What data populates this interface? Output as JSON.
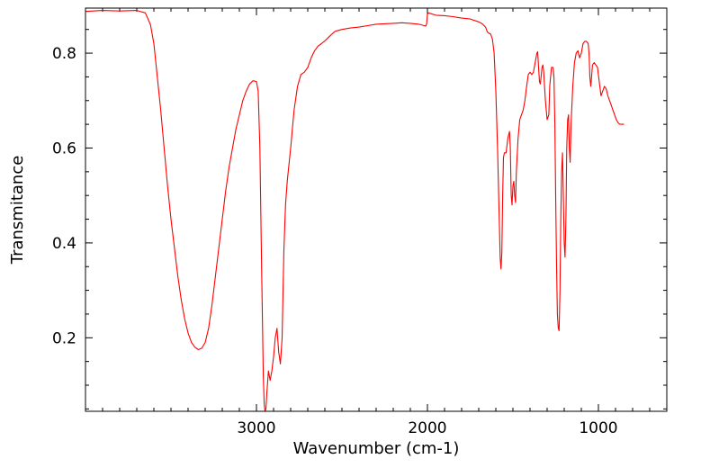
{
  "chart_data": {
    "type": "line",
    "title": "",
    "xlabel": "Wavenumber (cm-1)",
    "ylabel": "Transmitance",
    "x_axis_reversed": true,
    "xlim": [
      4000,
      600
    ],
    "ylim": [
      0.045,
      0.895
    ],
    "x_ticks": [
      3000,
      2000,
      1000
    ],
    "x_tick_labels": [
      "3000",
      "2000",
      "1000"
    ],
    "y_ticks": [
      0.2,
      0.4,
      0.6,
      0.8
    ],
    "y_tick_labels": [
      "0.2",
      "0.4",
      "0.6",
      "0.8"
    ],
    "grid": false,
    "legend": "none",
    "series": [
      {
        "color": "#ff0000",
        "points": [
          [
            4000,
            0.888
          ],
          [
            3900,
            0.89
          ],
          [
            3800,
            0.889
          ],
          [
            3700,
            0.89
          ],
          [
            3650,
            0.885
          ],
          [
            3620,
            0.86
          ],
          [
            3600,
            0.82
          ],
          [
            3580,
            0.75
          ],
          [
            3560,
            0.68
          ],
          [
            3540,
            0.6
          ],
          [
            3520,
            0.52
          ],
          [
            3500,
            0.45
          ],
          [
            3480,
            0.39
          ],
          [
            3460,
            0.33
          ],
          [
            3440,
            0.28
          ],
          [
            3420,
            0.24
          ],
          [
            3400,
            0.21
          ],
          [
            3380,
            0.19
          ],
          [
            3360,
            0.18
          ],
          [
            3340,
            0.175
          ],
          [
            3320,
            0.178
          ],
          [
            3300,
            0.19
          ],
          [
            3280,
            0.22
          ],
          [
            3260,
            0.27
          ],
          [
            3240,
            0.33
          ],
          [
            3220,
            0.39
          ],
          [
            3200,
            0.45
          ],
          [
            3180,
            0.51
          ],
          [
            3160,
            0.56
          ],
          [
            3140,
            0.6
          ],
          [
            3120,
            0.64
          ],
          [
            3100,
            0.67
          ],
          [
            3080,
            0.7
          ],
          [
            3060,
            0.72
          ],
          [
            3040,
            0.735
          ],
          [
            3020,
            0.742
          ],
          [
            3000,
            0.74
          ],
          [
            2990,
            0.72
          ],
          [
            2980,
            0.6
          ],
          [
            2970,
            0.35
          ],
          [
            2960,
            0.12
          ],
          [
            2955,
            0.06
          ],
          [
            2950,
            0.045
          ],
          [
            2945,
            0.05
          ],
          [
            2940,
            0.08
          ],
          [
            2930,
            0.13
          ],
          [
            2920,
            0.11
          ],
          [
            2910,
            0.13
          ],
          [
            2900,
            0.16
          ],
          [
            2890,
            0.2
          ],
          [
            2880,
            0.22
          ],
          [
            2870,
            0.17
          ],
          [
            2860,
            0.145
          ],
          [
            2850,
            0.2
          ],
          [
            2840,
            0.38
          ],
          [
            2830,
            0.48
          ],
          [
            2820,
            0.53
          ],
          [
            2800,
            0.6
          ],
          [
            2780,
            0.68
          ],
          [
            2760,
            0.73
          ],
          [
            2740,
            0.755
          ],
          [
            2720,
            0.76
          ],
          [
            2700,
            0.77
          ],
          [
            2680,
            0.79
          ],
          [
            2660,
            0.805
          ],
          [
            2640,
            0.815
          ],
          [
            2620,
            0.82
          ],
          [
            2600,
            0.826
          ],
          [
            2580,
            0.833
          ],
          [
            2560,
            0.84
          ],
          [
            2540,
            0.846
          ],
          [
            2500,
            0.85
          ],
          [
            2450,
            0.853
          ],
          [
            2400,
            0.855
          ],
          [
            2350,
            0.858
          ],
          [
            2300,
            0.861
          ],
          [
            2250,
            0.862
          ],
          [
            2200,
            0.863
          ],
          [
            2150,
            0.864
          ],
          [
            2100,
            0.863
          ],
          [
            2050,
            0.861
          ],
          [
            2010,
            0.857
          ],
          [
            2005,
            0.862
          ],
          [
            2000,
            0.882
          ],
          [
            1995,
            0.885
          ],
          [
            1950,
            0.88
          ],
          [
            1900,
            0.879
          ],
          [
            1850,
            0.877
          ],
          [
            1800,
            0.874
          ],
          [
            1750,
            0.872
          ],
          [
            1700,
            0.866
          ],
          [
            1680,
            0.862
          ],
          [
            1660,
            0.855
          ],
          [
            1650,
            0.845
          ],
          [
            1640,
            0.842
          ],
          [
            1630,
            0.84
          ],
          [
            1620,
            0.83
          ],
          [
            1610,
            0.8
          ],
          [
            1600,
            0.72
          ],
          [
            1590,
            0.6
          ],
          [
            1580,
            0.45
          ],
          [
            1575,
            0.37
          ],
          [
            1570,
            0.345
          ],
          [
            1565,
            0.38
          ],
          [
            1560,
            0.5
          ],
          [
            1555,
            0.58
          ],
          [
            1550,
            0.59
          ],
          [
            1540,
            0.59
          ],
          [
            1530,
            0.62
          ],
          [
            1520,
            0.635
          ],
          [
            1515,
            0.6
          ],
          [
            1510,
            0.5
          ],
          [
            1505,
            0.48
          ],
          [
            1500,
            0.52
          ],
          [
            1495,
            0.53
          ],
          [
            1490,
            0.5
          ],
          [
            1485,
            0.485
          ],
          [
            1480,
            0.55
          ],
          [
            1470,
            0.62
          ],
          [
            1460,
            0.66
          ],
          [
            1450,
            0.67
          ],
          [
            1440,
            0.68
          ],
          [
            1430,
            0.7
          ],
          [
            1420,
            0.73
          ],
          [
            1410,
            0.755
          ],
          [
            1400,
            0.76
          ],
          [
            1390,
            0.755
          ],
          [
            1380,
            0.76
          ],
          [
            1370,
            0.78
          ],
          [
            1360,
            0.8
          ],
          [
            1355,
            0.803
          ],
          [
            1350,
            0.77
          ],
          [
            1345,
            0.74
          ],
          [
            1340,
            0.735
          ],
          [
            1335,
            0.75
          ],
          [
            1330,
            0.77
          ],
          [
            1325,
            0.775
          ],
          [
            1320,
            0.76
          ],
          [
            1310,
            0.7
          ],
          [
            1300,
            0.66
          ],
          [
            1290,
            0.67
          ],
          [
            1285,
            0.73
          ],
          [
            1275,
            0.77
          ],
          [
            1265,
            0.77
          ],
          [
            1260,
            0.75
          ],
          [
            1255,
            0.65
          ],
          [
            1250,
            0.5
          ],
          [
            1245,
            0.35
          ],
          [
            1240,
            0.25
          ],
          [
            1235,
            0.22
          ],
          [
            1230,
            0.215
          ],
          [
            1225,
            0.3
          ],
          [
            1220,
            0.45
          ],
          [
            1215,
            0.55
          ],
          [
            1210,
            0.59
          ],
          [
            1205,
            0.5
          ],
          [
            1200,
            0.4
          ],
          [
            1195,
            0.37
          ],
          [
            1190,
            0.45
          ],
          [
            1185,
            0.6
          ],
          [
            1180,
            0.66
          ],
          [
            1175,
            0.67
          ],
          [
            1170,
            0.6
          ],
          [
            1165,
            0.57
          ],
          [
            1160,
            0.65
          ],
          [
            1150,
            0.73
          ],
          [
            1140,
            0.78
          ],
          [
            1130,
            0.8
          ],
          [
            1120,
            0.805
          ],
          [
            1110,
            0.79
          ],
          [
            1100,
            0.8
          ],
          [
            1090,
            0.82
          ],
          [
            1080,
            0.825
          ],
          [
            1070,
            0.825
          ],
          [
            1060,
            0.82
          ],
          [
            1055,
            0.8
          ],
          [
            1050,
            0.75
          ],
          [
            1045,
            0.73
          ],
          [
            1040,
            0.75
          ],
          [
            1035,
            0.775
          ],
          [
            1025,
            0.78
          ],
          [
            1015,
            0.775
          ],
          [
            1005,
            0.77
          ],
          [
            995,
            0.74
          ],
          [
            985,
            0.71
          ],
          [
            975,
            0.72
          ],
          [
            965,
            0.73
          ],
          [
            955,
            0.725
          ],
          [
            945,
            0.71
          ],
          [
            935,
            0.7
          ],
          [
            925,
            0.69
          ],
          [
            915,
            0.68
          ],
          [
            905,
            0.67
          ],
          [
            895,
            0.66
          ],
          [
            885,
            0.653
          ],
          [
            875,
            0.65
          ],
          [
            860,
            0.65
          ],
          [
            850,
            0.65
          ]
        ]
      }
    ]
  }
}
